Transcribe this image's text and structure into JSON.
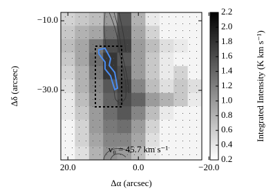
{
  "chart_data": {
    "type": "heatmap",
    "x_label": "Δα (arcsec)",
    "y_label": "Δδ (arcsec)",
    "colorbar_label": "Integrated Intensity (K km s⁻¹)",
    "annotation": "v₀ = 45.7 km s⁻¹",
    "xlim": [
      22,
      -18
    ],
    "ylim": [
      -50,
      -7.6
    ],
    "xticks": [
      {
        "value": 20,
        "label": "20.0"
      },
      {
        "value": 0,
        "label": "0.0"
      },
      {
        "value": -20,
        "label": "−20.0"
      }
    ],
    "yticks": [
      {
        "value": -10,
        "label": "−10.0"
      },
      {
        "value": -30,
        "label": "−30.0"
      }
    ],
    "zlim": [
      0.2,
      2.2
    ],
    "zticks": [
      0.2,
      0.4,
      0.6,
      0.8,
      {
        "value": 1,
        "label": "1.0"
      },
      1.2,
      1.4,
      1.6,
      1.8,
      {
        "value": 2,
        "label": "2.0"
      },
      2.2
    ],
    "colormap": "gray_r",
    "z": [
      [
        0.5,
        0.6,
        0.7,
        1.0,
        1.6,
        0.8,
        0.3,
        0.2,
        0.2,
        0.2
      ],
      [
        0.6,
        0.8,
        0.9,
        1.4,
        1.7,
        0.9,
        0.5,
        0.2,
        0.2,
        0.2
      ],
      [
        0.7,
        0.9,
        1.3,
        1.7,
        1.8,
        1.0,
        0.7,
        0.4,
        0.3,
        0.2
      ],
      [
        0.6,
        0.9,
        1.4,
        1.9,
        1.6,
        1.0,
        0.6,
        0.3,
        0.2,
        0.2
      ],
      [
        0.5,
        0.8,
        1.3,
        1.9,
        1.7,
        1.0,
        0.6,
        0.3,
        0.5,
        0.2
      ],
      [
        0.4,
        0.8,
        1.2,
        1.6,
        1.8,
        1.2,
        0.7,
        0.4,
        0.6,
        0.4
      ],
      [
        0.3,
        0.7,
        1.1,
        1.5,
        1.7,
        1.5,
        1.0,
        0.8,
        0.6,
        0.3
      ],
      [
        0.3,
        0.6,
        1.0,
        1.4,
        1.6,
        1.2,
        0.7,
        0.3,
        0.2,
        0.2
      ],
      [
        0.2,
        0.5,
        1.0,
        1.3,
        1.4,
        1.0,
        0.5,
        0.2,
        0.2,
        0.2
      ],
      [
        0.2,
        0.5,
        0.9,
        1.2,
        1.2,
        0.9,
        0.4,
        0.2,
        0.2,
        0.2
      ],
      [
        0.2,
        0.4,
        0.8,
        1.1,
        1.0,
        0.7,
        0.3,
        0.2,
        0.2,
        0.2
      ]
    ]
  }
}
